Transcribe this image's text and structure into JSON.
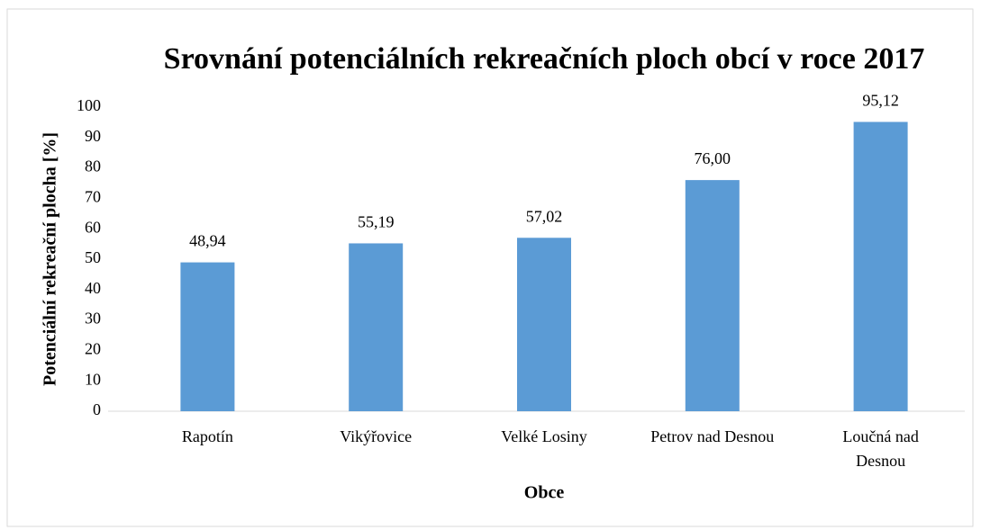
{
  "chart_data": {
    "type": "bar",
    "title": "Srovnání potenciálních rekreačních ploch obcí v roce 2017",
    "x_label": "Obce",
    "y_label": "Potenciální rekreační plocha [%]",
    "categories": [
      "Rapotín",
      "Vikýřovice",
      "Velké Losiny",
      "Petrov nad Desnou",
      "Loučná nad Desnou"
    ],
    "values": [
      48.94,
      55.19,
      57.02,
      76.0,
      95.12
    ],
    "value_labels": [
      "48,94",
      "55,19",
      "57,02",
      "76,00",
      "95,12"
    ],
    "color": "#5b9bd5",
    "ylim": [
      0,
      100
    ],
    "yticks": [
      0,
      10,
      20,
      30,
      40,
      50,
      60,
      70,
      80,
      90,
      100
    ],
    "grid": false
  }
}
